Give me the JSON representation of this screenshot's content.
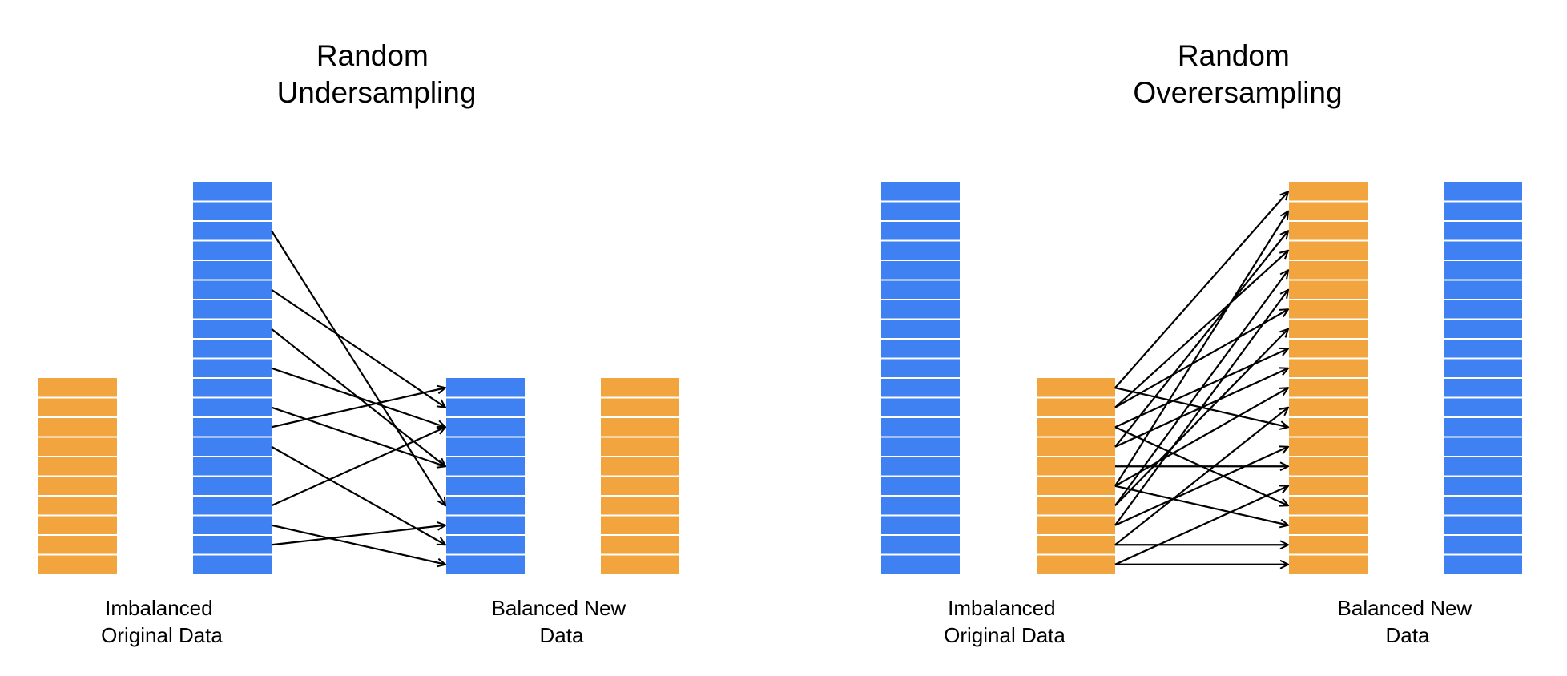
{
  "colors": {
    "majority": "#3f80f2",
    "minority": "#f2a43f",
    "divider": "#ffffff",
    "arrow": "#000000"
  },
  "undersampling": {
    "title_line1": "Random",
    "title_line2": "Undersampling",
    "original_caption_line1": "Imbalanced",
    "original_caption_line2": "Original Data",
    "new_caption_line1": "Balanced New",
    "new_caption_line2": "Data",
    "original_minority_cells": 10,
    "original_majority_cells": 20,
    "new_majority_cells": 10,
    "new_minority_cells": 10,
    "arrows": [
      {
        "from": 2,
        "to": 6
      },
      {
        "from": 5,
        "to": 1
      },
      {
        "from": 7,
        "to": 4
      },
      {
        "from": 9,
        "to": 2
      },
      {
        "from": 11,
        "to": 4
      },
      {
        "from": 12,
        "to": 0
      },
      {
        "from": 13,
        "to": 8
      },
      {
        "from": 16,
        "to": 2
      },
      {
        "from": 17,
        "to": 9
      },
      {
        "from": 18,
        "to": 7
      }
    ]
  },
  "oversampling": {
    "title_line1": "Random",
    "title_line2": "Overersampling",
    "original_caption_line1": "Imbalanced",
    "original_caption_line2": "Original Data",
    "new_caption_line1": "Balanced New",
    "new_caption_line2": "Data",
    "original_majority_cells": 20,
    "original_minority_cells": 10,
    "new_minority_cells": 20,
    "new_majority_cells": 20,
    "arrows": [
      {
        "from": 0,
        "to": 0
      },
      {
        "from": 0,
        "to": 12
      },
      {
        "from": 1,
        "to": 3
      },
      {
        "from": 1,
        "to": 6
      },
      {
        "from": 2,
        "to": 8
      },
      {
        "from": 2,
        "to": 16
      },
      {
        "from": 3,
        "to": 2
      },
      {
        "from": 3,
        "to": 9
      },
      {
        "from": 4,
        "to": 14
      },
      {
        "from": 5,
        "to": 1
      },
      {
        "from": 5,
        "to": 10
      },
      {
        "from": 5,
        "to": 17
      },
      {
        "from": 6,
        "to": 4
      },
      {
        "from": 6,
        "to": 7
      },
      {
        "from": 7,
        "to": 5
      },
      {
        "from": 7,
        "to": 13
      },
      {
        "from": 8,
        "to": 18
      },
      {
        "from": 8,
        "to": 11
      },
      {
        "from": 9,
        "to": 15
      },
      {
        "from": 9,
        "to": 19
      }
    ]
  }
}
